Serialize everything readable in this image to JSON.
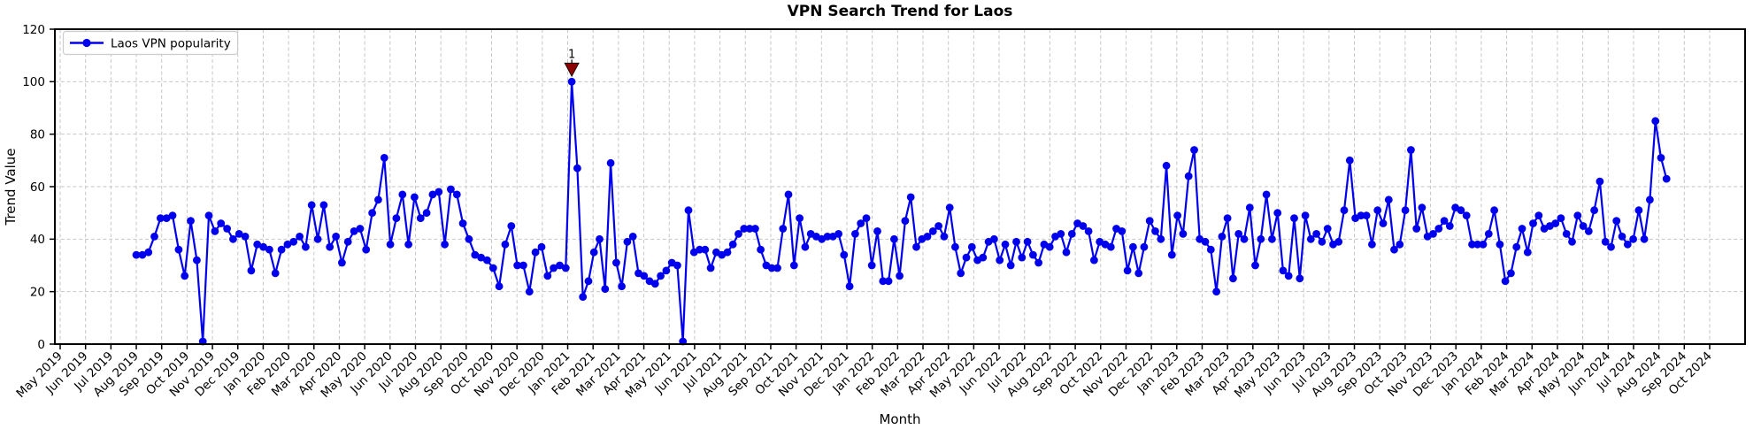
{
  "chart_data": {
    "type": "line",
    "title": "VPN Search Trend for Laos",
    "xlabel": "Month",
    "ylabel": "Trend Value",
    "ylim": [
      0,
      120
    ],
    "yticks": [
      0,
      20,
      40,
      60,
      80,
      100,
      120
    ],
    "grid": true,
    "legend_position": "upper left",
    "x_tick_labels": [
      "May 2019",
      "Jun 2019",
      "Jul 2019",
      "Aug 2019",
      "Sep 2019",
      "Oct 2019",
      "Nov 2019",
      "Dec 2019",
      "Jan 2020",
      "Feb 2020",
      "Mar 2020",
      "Apr 2020",
      "May 2020",
      "Jun 2020",
      "Jul 2020",
      "Aug 2020",
      "Sep 2020",
      "Oct 2020",
      "Nov 2020",
      "Dec 2020",
      "Jan 2021",
      "Feb 2021",
      "Mar 2021",
      "Apr 2021",
      "May 2021",
      "Jun 2021",
      "Jul 2021",
      "Aug 2021",
      "Sep 2021",
      "Oct 2021",
      "Nov 2021",
      "Dec 2021",
      "Jan 2022",
      "Feb 2022",
      "Mar 2022",
      "Apr 2022",
      "May 2022",
      "Jun 2022",
      "Jul 2022",
      "Aug 2022",
      "Sep 2022",
      "Oct 2022",
      "Nov 2022",
      "Dec 2022",
      "Jan 2023",
      "Feb 2023",
      "Mar 2023",
      "Apr 2023",
      "May 2023",
      "Jun 2023",
      "Jul 2023",
      "Aug 2023",
      "Sep 2023",
      "Oct 2023",
      "Nov 2023",
      "Dec 2023",
      "Jan 2024",
      "Feb 2024",
      "Mar 2024",
      "Apr 2024",
      "May 2024",
      "Jun 2024",
      "Jul 2024",
      "Aug 2024",
      "Sep 2024",
      "Oct 2024"
    ],
    "series": [
      {
        "name": "Laos VPN popularity",
        "color": "#0000ee",
        "marker": "circle",
        "frequency": "weekly",
        "first_point": "Aug 2019",
        "last_point": "Aug 2024",
        "values": [
          34,
          34,
          35,
          41,
          48,
          48,
          49,
          36,
          26,
          47,
          32,
          1,
          49,
          43,
          46,
          44,
          40,
          42,
          41,
          28,
          38,
          37,
          36,
          27,
          36,
          38,
          39,
          41,
          37,
          53,
          40,
          53,
          37,
          41,
          31,
          39,
          43,
          44,
          36,
          50,
          55,
          71,
          38,
          48,
          57,
          38,
          56,
          48,
          50,
          57,
          58,
          38,
          59,
          57,
          46,
          40,
          34,
          33,
          32,
          29,
          22,
          38,
          45,
          30,
          30,
          20,
          35,
          37,
          26,
          29,
          30,
          29,
          100,
          67,
          18,
          24,
          35,
          40,
          21,
          69,
          31,
          22,
          39,
          41,
          27,
          26,
          24,
          23,
          26,
          28,
          31,
          30,
          1,
          51,
          35,
          36,
          36,
          29,
          35,
          34,
          35,
          38,
          42,
          44,
          44,
          44,
          36,
          30,
          29,
          29,
          44,
          57,
          30,
          48,
          37,
          42,
          41,
          40,
          41,
          41,
          42,
          34,
          22,
          42,
          46,
          48,
          30,
          43,
          24,
          24,
          40,
          26,
          47,
          56,
          37,
          40,
          41,
          43,
          45,
          41,
          52,
          37,
          27,
          33,
          37,
          32,
          33,
          39,
          40,
          32,
          38,
          30,
          39,
          33,
          39,
          34,
          31,
          38,
          37,
          41,
          42,
          35,
          42,
          46,
          45,
          43,
          32,
          39,
          38,
          37,
          44,
          43,
          28,
          37,
          27,
          37,
          47,
          43,
          40,
          68,
          34,
          49,
          42,
          64,
          74,
          40,
          39,
          36,
          20,
          41,
          48,
          25,
          42,
          40,
          52,
          30,
          40,
          57,
          40,
          50,
          28,
          26,
          48,
          25,
          49,
          40,
          42,
          39,
          44,
          38,
          39,
          51,
          70,
          48,
          49,
          49,
          38,
          51,
          46,
          55,
          36,
          38,
          51,
          74,
          44,
          52,
          41,
          42,
          44,
          47,
          45,
          52,
          51,
          49,
          38,
          38,
          38,
          42,
          51,
          38,
          24,
          27,
          37,
          44,
          35,
          46,
          49,
          44,
          45,
          46,
          48,
          42,
          39,
          49,
          45,
          43,
          51,
          62,
          39,
          37,
          47,
          41,
          38,
          40,
          51,
          40,
          55,
          85,
          71,
          63
        ]
      }
    ],
    "annotation": {
      "label": "1",
      "point_index": 72,
      "point_value": 100,
      "marker": "triangle-down",
      "color": "#8b0000"
    },
    "layout_hints": {
      "series_start_month": 3.0,
      "peak_month": 20.16,
      "series_end_month": 63.3,
      "peak_index": 72
    }
  },
  "colors": {
    "line": "#0000ee",
    "annotation": "#8b0000",
    "grid": "#c6c6c6",
    "axis": "#000000",
    "background": "#ffffff",
    "legend_border": "#cccccc",
    "legend_background": "#ffffff"
  }
}
